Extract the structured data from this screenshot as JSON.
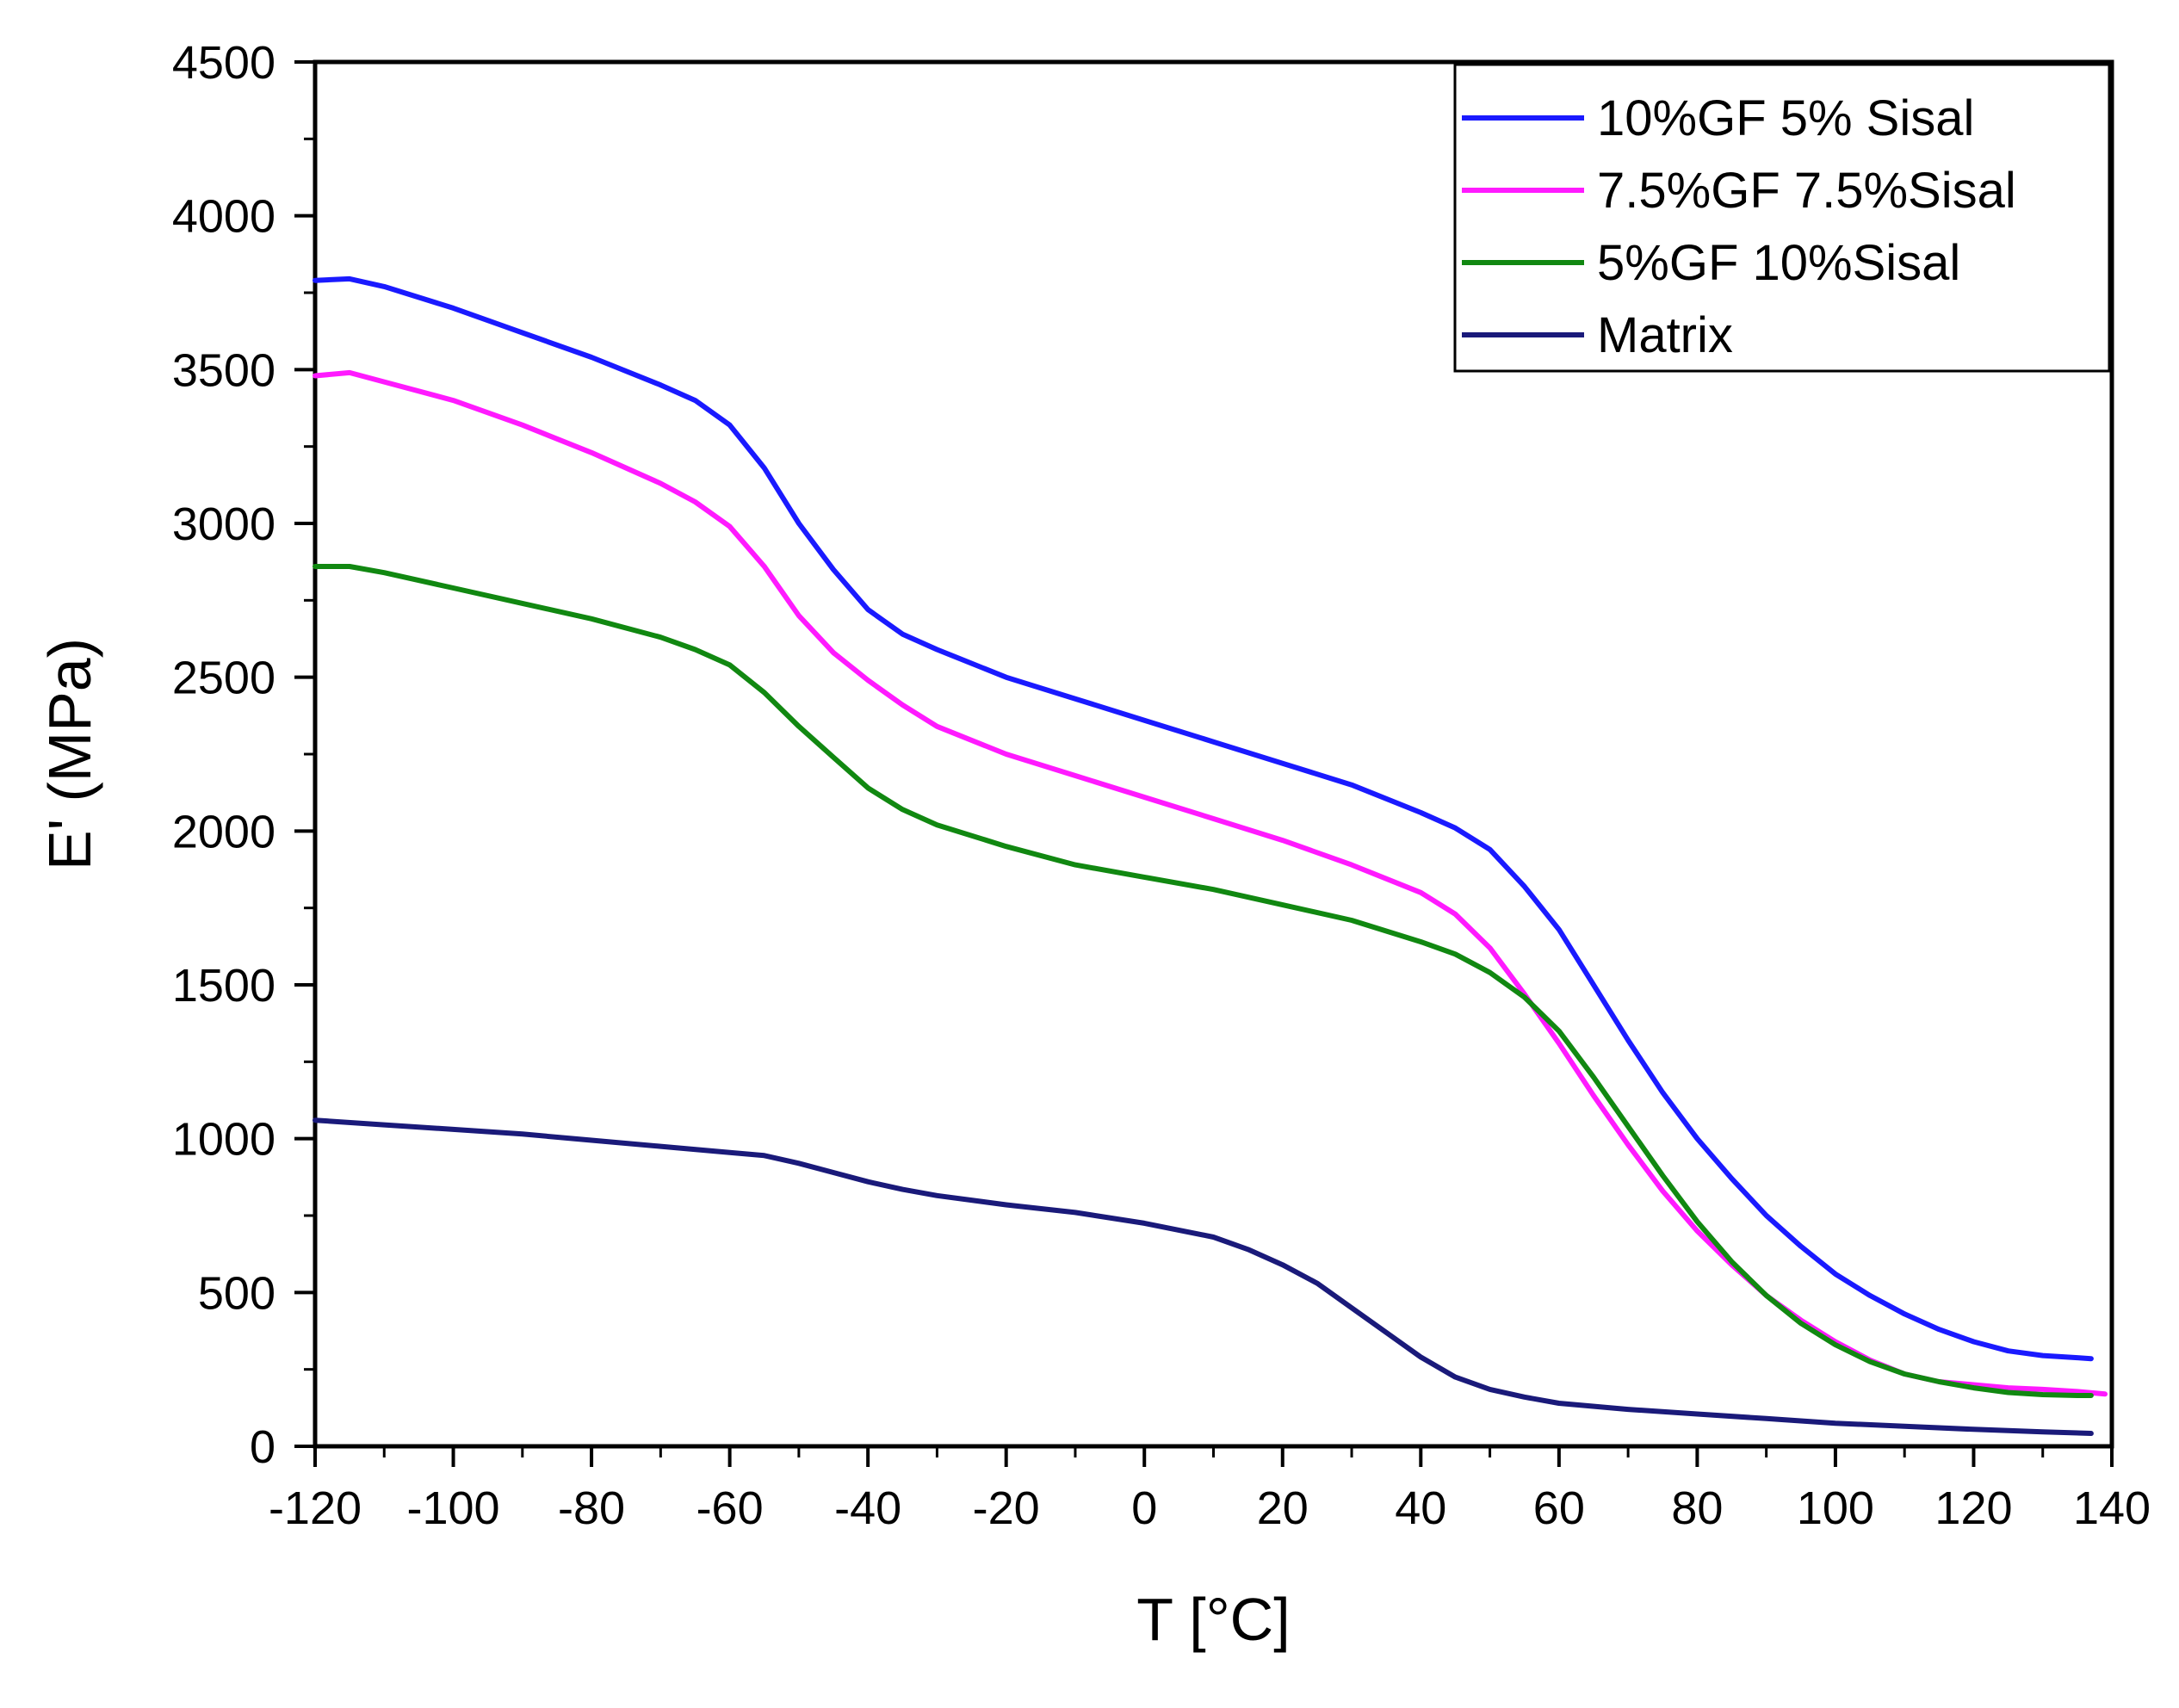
{
  "chart_data": {
    "type": "line",
    "title": "",
    "xlabel": "T [°C]",
    "ylabel": "E' (MPa)",
    "xlim": [
      -120,
      140
    ],
    "ylim": [
      0,
      4500
    ],
    "x_ticks": [
      -120,
      -100,
      -80,
      -60,
      -40,
      -20,
      0,
      20,
      40,
      60,
      80,
      100,
      120,
      140
    ],
    "y_ticks": [
      0,
      500,
      1000,
      1500,
      2000,
      2500,
      3000,
      3500,
      4000,
      4500
    ],
    "grid": false,
    "legend_position": "top-right",
    "series": [
      {
        "name": "10%GF 5% Sisal",
        "color": "#1a1aff",
        "points": [
          [
            -120,
            3790
          ],
          [
            -115,
            3795
          ],
          [
            -110,
            3770
          ],
          [
            -100,
            3700
          ],
          [
            -90,
            3620
          ],
          [
            -80,
            3540
          ],
          [
            -70,
            3450
          ],
          [
            -65,
            3400
          ],
          [
            -60,
            3320
          ],
          [
            -55,
            3180
          ],
          [
            -50,
            3000
          ],
          [
            -45,
            2850
          ],
          [
            -40,
            2720
          ],
          [
            -35,
            2640
          ],
          [
            -30,
            2590
          ],
          [
            -20,
            2500
          ],
          [
            -10,
            2430
          ],
          [
            0,
            2360
          ],
          [
            10,
            2290
          ],
          [
            20,
            2220
          ],
          [
            30,
            2150
          ],
          [
            40,
            2060
          ],
          [
            45,
            2010
          ],
          [
            50,
            1940
          ],
          [
            55,
            1820
          ],
          [
            60,
            1680
          ],
          [
            65,
            1500
          ],
          [
            70,
            1320
          ],
          [
            75,
            1150
          ],
          [
            80,
            1000
          ],
          [
            85,
            870
          ],
          [
            90,
            750
          ],
          [
            95,
            650
          ],
          [
            100,
            560
          ],
          [
            105,
            490
          ],
          [
            110,
            430
          ],
          [
            115,
            380
          ],
          [
            120,
            340
          ],
          [
            125,
            310
          ],
          [
            130,
            295
          ],
          [
            135,
            288
          ],
          [
            137,
            285
          ]
        ]
      },
      {
        "name": "7.5%GF 7.5%Sisal",
        "color": "#ff1aff",
        "points": [
          [
            -120,
            3480
          ],
          [
            -115,
            3490
          ],
          [
            -110,
            3460
          ],
          [
            -100,
            3400
          ],
          [
            -90,
            3320
          ],
          [
            -80,
            3230
          ],
          [
            -70,
            3130
          ],
          [
            -65,
            3070
          ],
          [
            -60,
            2990
          ],
          [
            -55,
            2860
          ],
          [
            -50,
            2700
          ],
          [
            -45,
            2580
          ],
          [
            -40,
            2490
          ],
          [
            -35,
            2410
          ],
          [
            -30,
            2340
          ],
          [
            -20,
            2250
          ],
          [
            -10,
            2180
          ],
          [
            0,
            2110
          ],
          [
            10,
            2040
          ],
          [
            20,
            1970
          ],
          [
            30,
            1890
          ],
          [
            40,
            1800
          ],
          [
            45,
            1730
          ],
          [
            50,
            1620
          ],
          [
            55,
            1470
          ],
          [
            60,
            1310
          ],
          [
            65,
            1140
          ],
          [
            70,
            980
          ],
          [
            75,
            830
          ],
          [
            80,
            700
          ],
          [
            85,
            590
          ],
          [
            90,
            490
          ],
          [
            95,
            410
          ],
          [
            100,
            340
          ],
          [
            105,
            280
          ],
          [
            110,
            235
          ],
          [
            115,
            210
          ],
          [
            120,
            200
          ],
          [
            125,
            190
          ],
          [
            130,
            185
          ],
          [
            135,
            178
          ],
          [
            139,
            170
          ]
        ]
      },
      {
        "name": "5%GF 10%Sisal",
        "color": "#118811",
        "points": [
          [
            -120,
            2860
          ],
          [
            -115,
            2860
          ],
          [
            -110,
            2840
          ],
          [
            -100,
            2790
          ],
          [
            -90,
            2740
          ],
          [
            -80,
            2690
          ],
          [
            -70,
            2630
          ],
          [
            -65,
            2590
          ],
          [
            -60,
            2540
          ],
          [
            -55,
            2450
          ],
          [
            -50,
            2340
          ],
          [
            -45,
            2240
          ],
          [
            -40,
            2140
          ],
          [
            -35,
            2070
          ],
          [
            -30,
            2020
          ],
          [
            -20,
            1950
          ],
          [
            -10,
            1890
          ],
          [
            0,
            1850
          ],
          [
            10,
            1810
          ],
          [
            20,
            1760
          ],
          [
            30,
            1710
          ],
          [
            40,
            1640
          ],
          [
            45,
            1600
          ],
          [
            50,
            1540
          ],
          [
            55,
            1460
          ],
          [
            60,
            1350
          ],
          [
            65,
            1200
          ],
          [
            70,
            1040
          ],
          [
            75,
            880
          ],
          [
            80,
            730
          ],
          [
            85,
            600
          ],
          [
            90,
            490
          ],
          [
            95,
            400
          ],
          [
            100,
            330
          ],
          [
            105,
            275
          ],
          [
            110,
            235
          ],
          [
            115,
            210
          ],
          [
            120,
            190
          ],
          [
            125,
            175
          ],
          [
            130,
            168
          ],
          [
            135,
            165
          ],
          [
            137,
            165
          ]
        ]
      },
      {
        "name": "Matrix",
        "color": "#1a1a7a",
        "points": [
          [
            -120,
            1060
          ],
          [
            -110,
            1045
          ],
          [
            -100,
            1030
          ],
          [
            -90,
            1015
          ],
          [
            -80,
            995
          ],
          [
            -70,
            975
          ],
          [
            -60,
            955
          ],
          [
            -55,
            945
          ],
          [
            -50,
            920
          ],
          [
            -45,
            890
          ],
          [
            -40,
            860
          ],
          [
            -35,
            835
          ],
          [
            -30,
            815
          ],
          [
            -20,
            785
          ],
          [
            -10,
            760
          ],
          [
            0,
            725
          ],
          [
            10,
            680
          ],
          [
            15,
            640
          ],
          [
            20,
            590
          ],
          [
            25,
            530
          ],
          [
            30,
            450
          ],
          [
            35,
            370
          ],
          [
            40,
            290
          ],
          [
            45,
            225
          ],
          [
            50,
            185
          ],
          [
            55,
            160
          ],
          [
            60,
            140
          ],
          [
            70,
            120
          ],
          [
            80,
            105
          ],
          [
            90,
            90
          ],
          [
            100,
            75
          ],
          [
            110,
            65
          ],
          [
            120,
            55
          ],
          [
            130,
            47
          ],
          [
            137,
            42
          ]
        ]
      }
    ]
  }
}
